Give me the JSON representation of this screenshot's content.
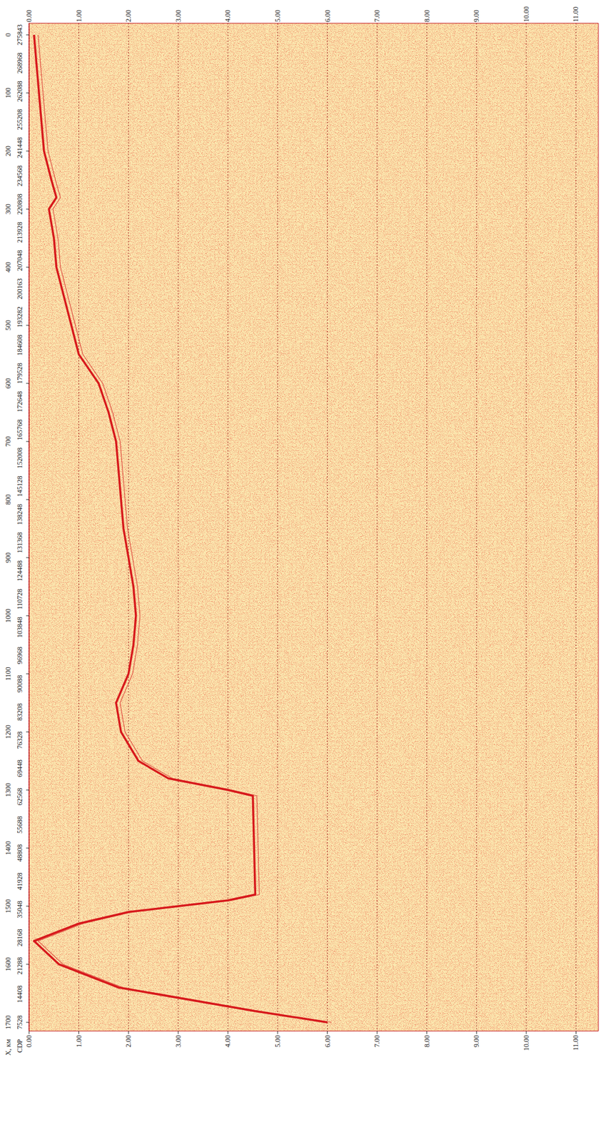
{
  "chart_data": {
    "type": "line",
    "x_label": "X, км",
    "cdp_label": "CDP",
    "cdp_labels": [
      "7528",
      "14408",
      "21288",
      "28168",
      "35048",
      "41928",
      "48808",
      "55688",
      "62568",
      "69448",
      "76328",
      "83208",
      "90088",
      "96968",
      "103848",
      "110728",
      "124488",
      "131368",
      "138248",
      "145128",
      "152008",
      "165768",
      "172648",
      "179528",
      "184608",
      "193282",
      "200163",
      "207048",
      "213928",
      "220808",
      "234568",
      "241448",
      "255208",
      "262088",
      "268968",
      "275843"
    ],
    "xlim": [
      -20,
      1715
    ],
    "xticks": [
      0,
      100,
      200,
      300,
      400,
      500,
      600,
      700,
      800,
      900,
      1000,
      1100,
      1200,
      1300,
      1400,
      1500,
      1600,
      1700
    ],
    "ylim": [
      0,
      11.45
    ],
    "yticks": [
      {
        "value": 0,
        "label": "0.00"
      },
      {
        "value": 1,
        "label": "1.00"
      },
      {
        "value": 2,
        "label": "2.00"
      },
      {
        "value": 3,
        "label": "3.00"
      },
      {
        "value": 4,
        "label": "4.00"
      },
      {
        "value": 5,
        "label": "5.00"
      },
      {
        "value": 6,
        "label": "6.00"
      },
      {
        "value": 7,
        "label": "7.00"
      },
      {
        "value": 8,
        "label": "8.00"
      },
      {
        "value": 9,
        "label": "9.00"
      },
      {
        "value": 10,
        "label": "10.00"
      },
      {
        "value": 11,
        "label": "11.00"
      }
    ],
    "grid": true,
    "series": [
      {
        "color": "#d7191c",
        "x": [
          0,
          50,
          100,
          150,
          200,
          250,
          280,
          300,
          350,
          400,
          450,
          500,
          550,
          600,
          650,
          700,
          750,
          800,
          850,
          900,
          950,
          1000,
          1050,
          1100,
          1150,
          1200,
          1250,
          1280,
          1300,
          1310,
          1480,
          1490,
          1500,
          1510,
          1530,
          1560,
          1600,
          1640,
          1680,
          1700
        ],
        "values": [
          0.1,
          0.15,
          0.2,
          0.25,
          0.3,
          0.45,
          0.55,
          0.4,
          0.5,
          0.55,
          0.7,
          0.85,
          1.0,
          1.4,
          1.6,
          1.75,
          1.8,
          1.85,
          1.9,
          2.0,
          2.1,
          2.15,
          2.1,
          2.0,
          1.75,
          1.85,
          2.2,
          2.8,
          4.0,
          4.5,
          4.55,
          4.0,
          3.0,
          2.0,
          1.0,
          0.1,
          0.6,
          1.8,
          4.5,
          6.0
        ]
      }
    ]
  }
}
